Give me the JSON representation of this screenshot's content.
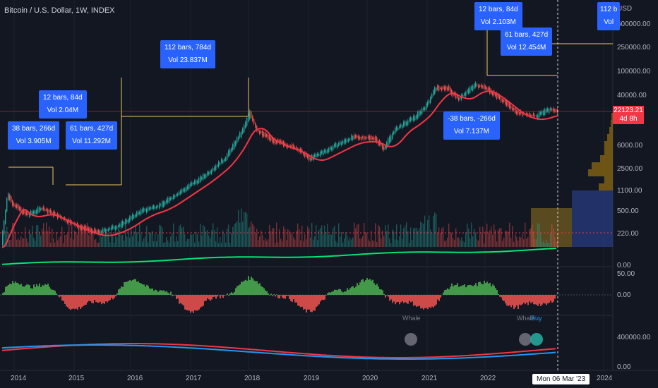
{
  "header": {
    "title": "Bitcoin / U.S. Dollar, 1W, INDEX"
  },
  "price_axis": {
    "currency": "USD",
    "labels": [
      "600000.00",
      "250000.00",
      "100000.00",
      "40000.00",
      "6000.00",
      "2500.00",
      "1100.00",
      "500.00",
      "220.00",
      "0.00"
    ],
    "current_price": "22123.21",
    "countdown": "4d 8h"
  },
  "indicator_axes": {
    "oscillator_labels": [
      "50.00",
      "0.00"
    ],
    "volume_labels": [
      "400000.00",
      "0.00"
    ]
  },
  "time_axis": {
    "labels": [
      "2014",
      "2015",
      "2016",
      "2017",
      "2018",
      "2019",
      "2020",
      "2021",
      "2022",
      "2024"
    ],
    "crosshair_date": "Mon 06 Mar '23"
  },
  "callouts": [
    {
      "line1": "38 bars, 266d",
      "line2": "Vol 3.905M"
    },
    {
      "line1": "12 bars, 84d",
      "line2": "Vol 2.04M"
    },
    {
      "line1": "61 bars, 427d",
      "line2": "Vol 11.292M"
    },
    {
      "line1": "112 bars, 784d",
      "line2": "Vol 23.837M"
    },
    {
      "line1": "12 bars, 84d",
      "line2": "Vol 2.103M"
    },
    {
      "line1": "61 bars, 427d",
      "line2": "Vol 12.454M"
    },
    {
      "line1": "-38 bars, -266d",
      "line2": "Vol 7.137M"
    },
    {
      "line1": "112 b",
      "line2": "Vol"
    }
  ],
  "signals": {
    "whale_1": "Whale",
    "whale_2": "Whale",
    "buy": "Buy"
  },
  "colors": {
    "background": "#131722",
    "callout": "#2962ff",
    "ma_line": "#f23645",
    "up_candle": "#26a69a",
    "down_candle": "#ef5350",
    "measure_line": "#f0c75e",
    "oscillator_positive": "#4caf50",
    "oscillator_negative": "#ef5350",
    "blue_line": "#2196f3",
    "green_line": "#00e676"
  }
}
